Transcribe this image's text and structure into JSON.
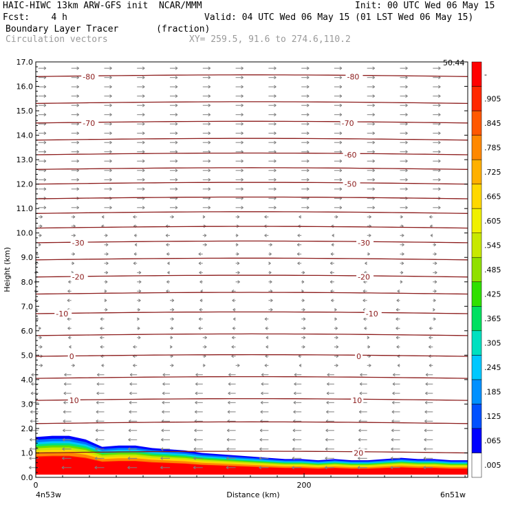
{
  "header": {
    "model_line": "HAIC-HIWC 13km ARW-GFS init  NCAR/MMM",
    "init_line": "Init: 00 UTC Wed 06 May 15",
    "fcst_line": "Fcst:    4 h",
    "valid_line": "Valid: 04 UTC Wed 06 May 15 (01 LST Wed 06 May 15)",
    "field_line": "Boundary Layer Tracer       (fraction)",
    "vector_line": "Circulation vectors",
    "xy_line": "XY= 259.5, 91.6 to 274.6,110.2"
  },
  "chart_data": {
    "type": "heatmap",
    "ylabel": "Height (km)",
    "xlabel": "Distance (km)",
    "y_ticks": [
      "0.0",
      "1.0",
      "2.0",
      "3.0",
      "4.0",
      "5.0",
      "6.0",
      "7.0",
      "8.0",
      "9.0",
      "10.0",
      "11.0",
      "12.0",
      "13.0",
      "14.0",
      "15.0",
      "16.0",
      "17.0"
    ],
    "ylim": [
      0,
      17
    ],
    "x_ticks": [
      "0",
      "200"
    ],
    "xlim": [
      0,
      322
    ],
    "x_endpoints": {
      "left": "4n53w",
      "right": "6n51w"
    },
    "corner_label": "50.44",
    "colorbar": {
      "labels": [
        ".005",
        ".065",
        ".125",
        ".185",
        ".245",
        ".305",
        ".365",
        ".425",
        ".485",
        ".545",
        ".605",
        ".665",
        ".725",
        ".785",
        ".845",
        ".905",
        "-"
      ],
      "colors": [
        "#ffffff",
        "#0000ff",
        "#0050ff",
        "#0090ff",
        "#00c8ff",
        "#00e0c0",
        "#00e060",
        "#30e000",
        "#90e000",
        "#c8e800",
        "#f0f000",
        "#ffd800",
        "#ffb000",
        "#ff8800",
        "#ff5800",
        "#ff2800",
        "#ff0000"
      ]
    },
    "contours": {
      "color": "#8b1a1a",
      "levels": [
        {
          "label": "80",
          "z": 16.4,
          "labels_at": [
            {
              "x": 35,
              "text": "-80"
            },
            {
              "x": 232,
              "text": "-80"
            }
          ]
        },
        {
          "label": "",
          "z": 15.3,
          "labels_at": []
        },
        {
          "label": "70",
          "z": 14.5,
          "labels_at": [
            {
              "x": 35,
              "text": "-70"
            },
            {
              "x": 228,
              "text": "-70"
            }
          ]
        },
        {
          "label": "",
          "z": 13.8,
          "labels_at": []
        },
        {
          "label": "60",
          "z": 13.2,
          "labels_at": [
            {
              "x": 230,
              "text": "-60"
            }
          ]
        },
        {
          "label": "",
          "z": 12.6,
          "labels_at": []
        },
        {
          "label": "50",
          "z": 12.0,
          "labels_at": [
            {
              "x": 230,
              "text": "-50"
            }
          ]
        },
        {
          "label": "",
          "z": 11.4,
          "labels_at": []
        },
        {
          "label": "",
          "z": 10.8,
          "labels_at": []
        },
        {
          "label": "",
          "z": 10.2,
          "labels_at": []
        },
        {
          "label": "30",
          "z": 9.6,
          "labels_at": [
            {
              "x": 27,
              "text": "-30"
            },
            {
              "x": 240,
              "text": "-30"
            }
          ]
        },
        {
          "label": "",
          "z": 8.9,
          "labels_at": []
        },
        {
          "label": "20",
          "z": 8.2,
          "labels_at": [
            {
              "x": 27,
              "text": "-20"
            },
            {
              "x": 240,
              "text": "-20"
            }
          ]
        },
        {
          "label": "",
          "z": 7.5,
          "labels_at": []
        },
        {
          "label": "10",
          "z": 6.7,
          "labels_at": [
            {
              "x": 15,
              "text": "-10"
            },
            {
              "x": 246,
              "text": "-10"
            }
          ]
        },
        {
          "label": "",
          "z": 5.8,
          "labels_at": []
        },
        {
          "label": "0",
          "z": 4.95,
          "labels_at": [
            {
              "x": 25,
              "text": "0"
            },
            {
              "x": 239,
              "text": "0"
            }
          ]
        },
        {
          "label": "",
          "z": 4.05,
          "labels_at": []
        },
        {
          "label": "10",
          "z": 3.15,
          "labels_at": [
            {
              "x": 25,
              "text": "10"
            },
            {
              "x": 236,
              "text": "10"
            }
          ]
        },
        {
          "label": "",
          "z": 2.2,
          "labels_at": []
        },
        {
          "label": "20",
          "z": 1.0,
          "labels_at": [
            {
              "x": 237,
              "text": "20"
            }
          ]
        }
      ]
    },
    "tracer_top_km": [
      1.65,
      1.7,
      1.7,
      1.55,
      1.25,
      1.3,
      1.3,
      1.2,
      1.15,
      1.1,
      1.0,
      0.95,
      0.9,
      0.85,
      0.8,
      0.75,
      0.75,
      0.7,
      0.75,
      0.7,
      0.7,
      0.75,
      0.8,
      0.75,
      0.75,
      0.7,
      0.7
    ]
  }
}
